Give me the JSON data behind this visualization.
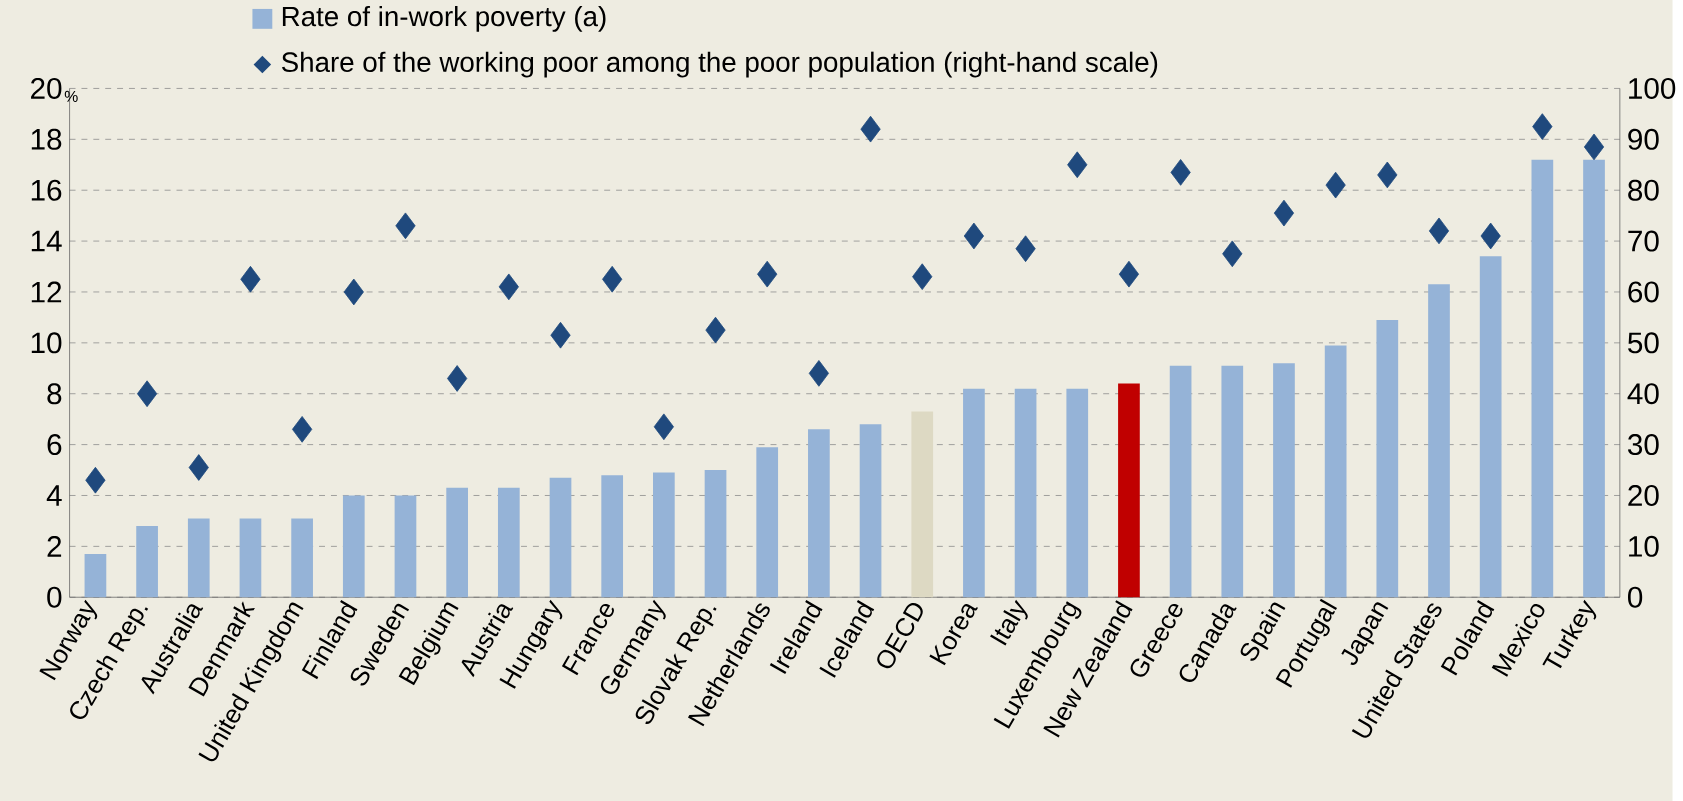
{
  "chart_data": {
    "type": "bar",
    "ylabel": "%",
    "categories": [
      "Norway",
      "Czech Rep.",
      "Australia",
      "Denmark",
      "United Kingdom",
      "Finland",
      "Sweden",
      "Belgium",
      "Austria",
      "Hungary",
      "France",
      "Germany",
      "Slovak Rep.",
      "Netherlands",
      "Ireland",
      "Iceland",
      "OECD",
      "Korea",
      "Italy",
      "Luxembourg",
      "New Zealand",
      "Greece",
      "Canada",
      "Spain",
      "Portugal",
      "Japan",
      "United States",
      "Poland",
      "Mexico",
      "Turkey"
    ],
    "series": [
      {
        "name": "Rate of in-work poverty (a)",
        "colors": [
          "#95b3d7",
          "#95b3d7",
          "#95b3d7",
          "#95b3d7",
          "#95b3d7",
          "#95b3d7",
          "#95b3d7",
          "#95b3d7",
          "#95b3d7",
          "#95b3d7",
          "#95b3d7",
          "#95b3d7",
          "#95b3d7",
          "#95b3d7",
          "#95b3d7",
          "#95b3d7",
          "#ddd9c3",
          "#95b3d7",
          "#95b3d7",
          "#95b3d7",
          "#c00000",
          "#95b3d7",
          "#95b3d7",
          "#95b3d7",
          "#95b3d7",
          "#95b3d7",
          "#95b3d7",
          "#95b3d7",
          "#95b3d7",
          "#95b3d7"
        ],
        "values": [
          1.7,
          2.8,
          3.1,
          3.1,
          3.1,
          4.0,
          4.0,
          4.3,
          4.3,
          4.7,
          4.8,
          4.9,
          5.0,
          5.9,
          6.6,
          6.8,
          7.3,
          8.2,
          8.2,
          8.2,
          8.4,
          9.1,
          9.1,
          9.2,
          9.9,
          10.9,
          12.3,
          13.4,
          17.2,
          17.2
        ]
      },
      {
        "name": "Share of the working poor among the poor population (right-hand scale)",
        "type": "scatter",
        "axis": "y2",
        "marker": "diamond",
        "color": "#1f497d",
        "values": [
          23,
          40,
          25.5,
          62.5,
          33,
          60,
          73,
          43,
          61,
          51.5,
          62.5,
          33.5,
          52.5,
          63.5,
          44,
          92,
          63,
          71,
          68.5,
          85,
          63.5,
          83.5,
          67.5,
          75.5,
          81,
          83,
          72,
          71,
          92.5,
          88.5
        ]
      }
    ],
    "ylim": [
      0,
      20
    ],
    "yticks": [
      0,
      2,
      4,
      6,
      8,
      10,
      12,
      14,
      16,
      18,
      20
    ],
    "y2lim": [
      0,
      100
    ],
    "y2ticks": [
      0,
      10,
      20,
      30,
      40,
      50,
      60,
      70,
      80,
      90,
      100
    ],
    "grid": "y",
    "legend": "top"
  }
}
